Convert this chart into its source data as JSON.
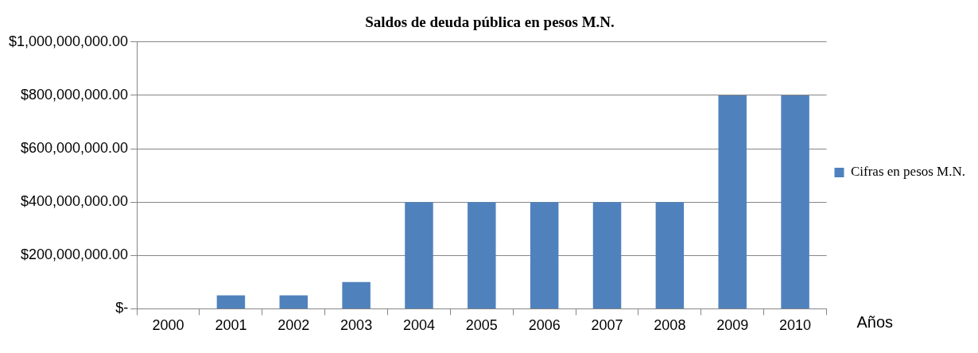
{
  "chart_data": {
    "type": "bar",
    "title": "Saldos de deuda pública en pesos M.N.",
    "xlabel": "Años",
    "categories": [
      "2000",
      "2001",
      "2002",
      "2003",
      "2004",
      "2005",
      "2006",
      "2007",
      "2008",
      "2009",
      "2010"
    ],
    "series": [
      {
        "name": "Cifras en pesos M.N.",
        "color": "#4f81bd",
        "values": [
          0,
          50000000,
          50000000,
          100000000,
          400000000,
          400000000,
          400000000,
          400000000,
          400000000,
          800000000,
          800000000
        ]
      }
    ],
    "ylim": [
      0,
      1000000000
    ],
    "yticks": [
      {
        "value": 0,
        "label": "$-"
      },
      {
        "value": 200000000,
        "label": "$200,000,000.00"
      },
      {
        "value": 400000000,
        "label": "$400,000,000.00"
      },
      {
        "value": 600000000,
        "label": "$600,000,000.00"
      },
      {
        "value": 800000000,
        "label": "$800,000,000.00"
      },
      {
        "value": 1000000000,
        "label": "$1,000,000,000.00"
      }
    ],
    "grid": "y",
    "legend": "right"
  }
}
